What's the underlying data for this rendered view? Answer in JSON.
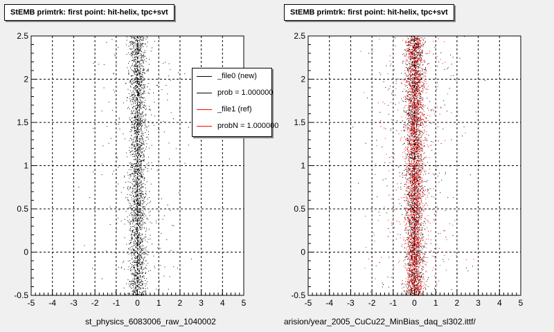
{
  "colors": {
    "background": "#f0f0f0",
    "frame": "#ffffff",
    "series_new": "#000000",
    "series_ref": "#ff0000"
  },
  "legend": {
    "items": [
      {
        "label": "_file0 (new)",
        "color": "#000000"
      },
      {
        "label": "prob = 1.000000",
        "color": "#000000"
      },
      {
        "label": "_file1 (ref)",
        "color": "#ff0000"
      },
      {
        "label": "probN = 1.000000",
        "color": "#ff0000"
      }
    ]
  },
  "footer": "",
  "chart_data": [
    {
      "type": "scatter",
      "title": "StEMB primtrk: first point: hit-helix, tpc+svt",
      "xlabel": "st_physics_6083006_raw_1040002",
      "ylabel": "",
      "xlim": [
        -5,
        5
      ],
      "ylim": [
        -0.5,
        2.5
      ],
      "xticks": [
        "-5",
        "-4",
        "-3",
        "-2",
        "-1",
        "0",
        "1",
        "2",
        "3",
        "4",
        "5"
      ],
      "yticks": [
        "-0.5",
        "0",
        "0.5",
        "1",
        "1.5",
        "2",
        "2.5"
      ],
      "grid": true,
      "legend_position": "top-right",
      "series": [
        {
          "name": "_file0 (new)",
          "color": "#000000",
          "distribution": {
            "x_center": 0.0,
            "x_spread": 0.2,
            "x_tail": 1.0,
            "y_range": [
              -0.5,
              2.5
            ]
          }
        }
      ]
    },
    {
      "type": "scatter",
      "title": "StEMB primtrk: first point: hit-helix, tpc+svt",
      "xlabel": "arision/year_2005_CuCu22_MinBias_daq_sl302.ittf/",
      "ylabel": "",
      "xlim": [
        -5,
        5
      ],
      "ylim": [
        -0.5,
        2.5
      ],
      "xticks": [
        "-5",
        "-4",
        "-3",
        "-2",
        "-1",
        "0",
        "1",
        "2",
        "3",
        "4",
        "5"
      ],
      "yticks": [
        "-0.5",
        "0",
        "0.5",
        "1",
        "1.5",
        "2",
        "2.5"
      ],
      "grid": true,
      "series": [
        {
          "name": "_file0 (new)",
          "color": "#000000",
          "distribution": {
            "x_center": 0.0,
            "x_spread": 0.2,
            "x_tail": 1.0,
            "y_range": [
              -0.5,
              2.5
            ]
          }
        },
        {
          "name": "_file1 (ref)",
          "color": "#ff0000",
          "distribution": {
            "x_center": 0.0,
            "x_spread": 0.22,
            "x_tail": 1.1,
            "y_range": [
              -0.5,
              2.5
            ]
          }
        }
      ]
    }
  ]
}
